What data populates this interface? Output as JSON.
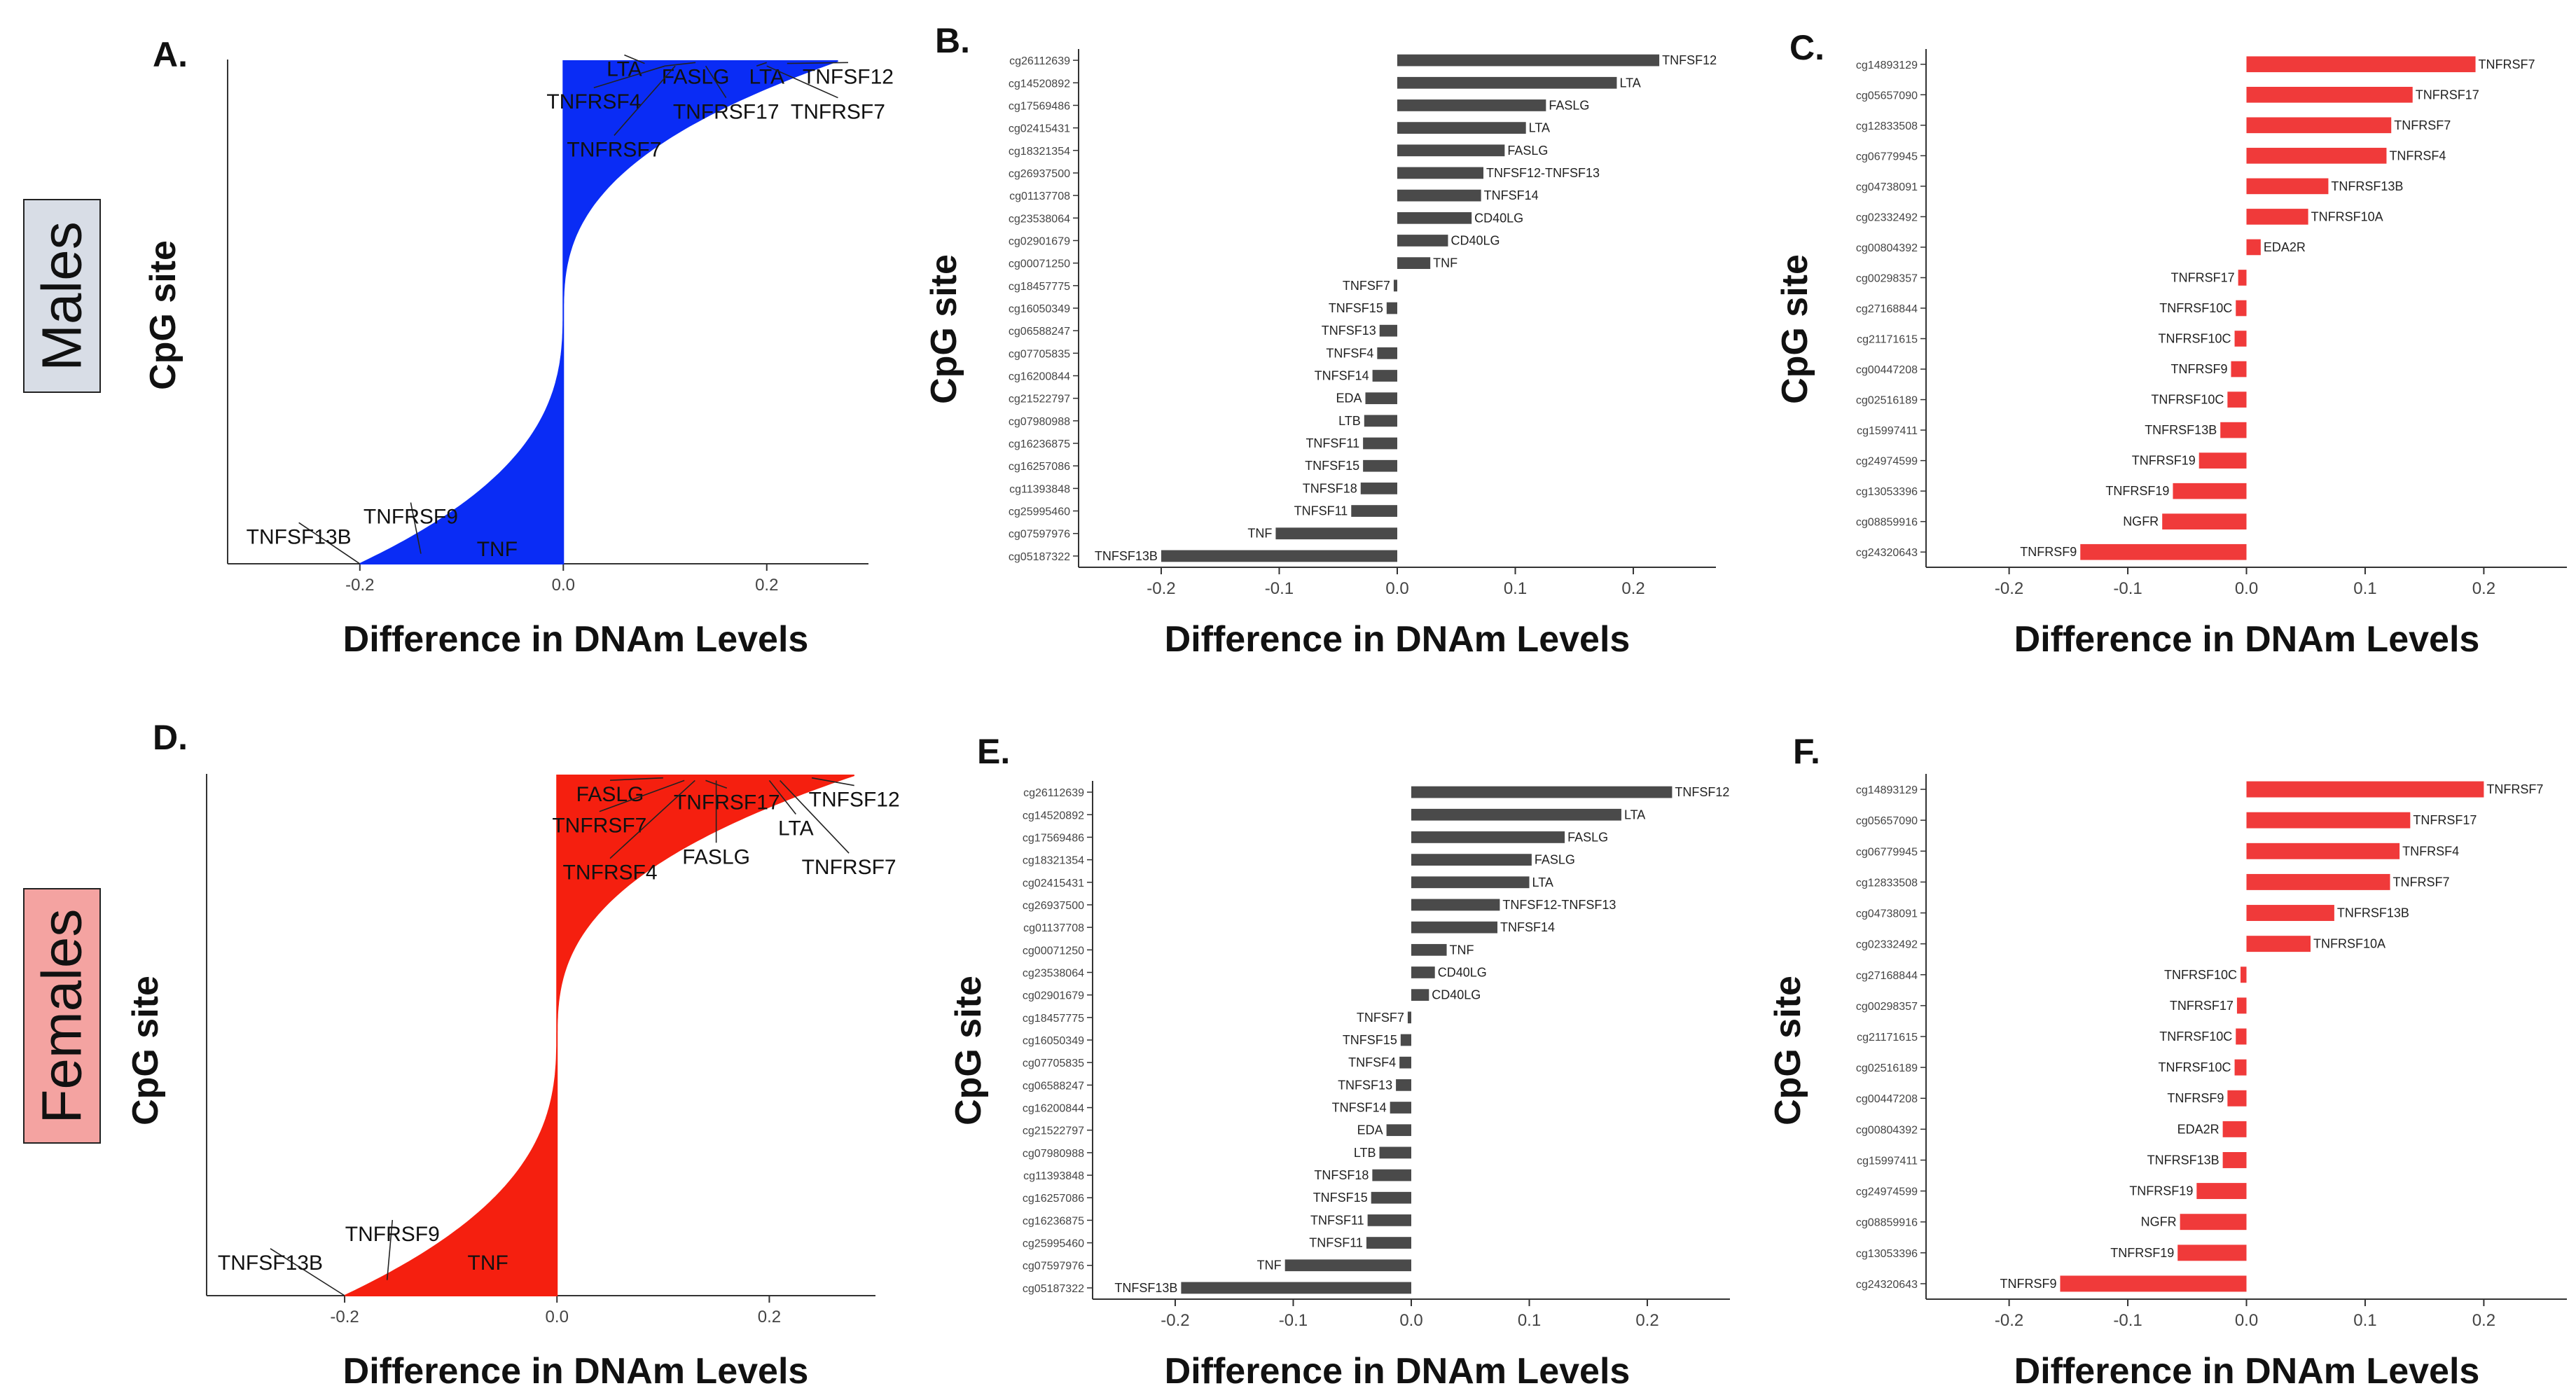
{
  "row_labels": {
    "males": {
      "text": "Males",
      "bg": "#d8dde6"
    },
    "females": {
      "text": "Females",
      "bg": "#f4a3a1"
    }
  },
  "colors": {
    "blue_fill": "#0a2cf5",
    "red_fill": "#f51f0f",
    "gray_bar": "#4a4a4a",
    "red_bar": "#f03a3a",
    "text": "#222222"
  },
  "chart_data": [
    {
      "id": "A",
      "panel_label": "A.",
      "type": "area",
      "fill": "blue",
      "xlabel": "Difference in DNAm Levels",
      "ylabel": "CpG site",
      "xlim": [
        -0.33,
        0.3
      ],
      "xticks": [
        -0.2,
        0.0,
        0.2
      ],
      "xtick_labels": [
        "-0.2",
        "0.0",
        "0.2"
      ],
      "curve": {
        "min_x": -0.2,
        "max_x": 0.27
      },
      "annotations": [
        {
          "text": "LTA",
          "pos": [
            0.06,
            0.97
          ],
          "tip": [
            0.08,
            0.995
          ]
        },
        {
          "text": "FASLG",
          "pos": [
            0.13,
            0.955
          ],
          "tip": [
            0.1,
            0.99
          ]
        },
        {
          "text": "LTA",
          "pos": [
            0.2,
            0.955
          ],
          "tip": [
            0.19,
            0.99
          ]
        },
        {
          "text": "TNFSF12",
          "pos": [
            0.28,
            0.955
          ],
          "tip": [
            0.22,
            0.995
          ]
        },
        {
          "text": "TNFRSF4",
          "pos": [
            0.03,
            0.905
          ],
          "tip": [
            0.1,
            0.99
          ]
        },
        {
          "text": "TNFRSF17",
          "pos": [
            0.16,
            0.885
          ],
          "tip": [
            0.14,
            0.99
          ]
        },
        {
          "text": "TNFRSF7",
          "pos": [
            0.27,
            0.885
          ],
          "tip": [
            0.2,
            0.99
          ]
        },
        {
          "text": "TNFRSF7",
          "pos": [
            0.05,
            0.81
          ],
          "tip": [
            0.11,
            0.99
          ]
        },
        {
          "text": "TNFRSF9",
          "pos": [
            -0.15,
            0.08
          ],
          "tip": [
            -0.14,
            0.02
          ]
        },
        {
          "text": "TNFSF13B",
          "pos": [
            -0.26,
            0.04
          ],
          "tip": [
            -0.2,
            0.0
          ]
        },
        {
          "text": "TNF",
          "pos": [
            -0.065,
            0.015
          ],
          "tip": null
        }
      ]
    },
    {
      "id": "B",
      "panel_label": "B.",
      "type": "bar",
      "orientation": "horizontal",
      "color": "gray",
      "xlabel": "Difference in DNAm Levels",
      "ylabel": "CpG site",
      "xlim": [
        -0.27,
        0.27
      ],
      "xticks": [
        -0.2,
        -0.1,
        0.0,
        0.1,
        0.2
      ],
      "xtick_labels": [
        "-0.2",
        "-0.1",
        "0.0",
        "0.1",
        "0.2"
      ],
      "categories": [
        "cg26112639",
        "cg14520892",
        "cg17569486",
        "cg02415431",
        "cg18321354",
        "cg26937500",
        "cg01137708",
        "cg23538064",
        "cg02901679",
        "cg00071250",
        "cg18457775",
        "cg16050349",
        "cg06588247",
        "cg07705835",
        "cg16200844",
        "cg21522797",
        "cg07980988",
        "cg16236875",
        "cg16257086",
        "cg11393848",
        "cg25995460",
        "cg07597976",
        "cg05187322"
      ],
      "genes": [
        "TNFSF12",
        "LTA",
        "FASLG",
        "LTA",
        "FASLG",
        "TNFSF12-TNFSF13",
        "TNFSF14",
        "CD40LG",
        "CD40LG",
        "TNF",
        "TNFSF7",
        "TNFSF15",
        "TNFSF13",
        "TNFSF4",
        "TNFSF14",
        "EDA",
        "LTB",
        "TNFSF11",
        "TNFSF15",
        "TNFSF18",
        "TNFSF11",
        "TNF",
        "TNFSF13B"
      ],
      "values": [
        0.222,
        0.186,
        0.126,
        0.109,
        0.091,
        0.073,
        0.071,
        0.063,
        0.043,
        0.028,
        -0.003,
        -0.009,
        -0.015,
        -0.017,
        -0.021,
        -0.027,
        -0.028,
        -0.029,
        -0.029,
        -0.031,
        -0.039,
        -0.103,
        -0.2
      ]
    },
    {
      "id": "C",
      "panel_label": "C.",
      "type": "bar",
      "orientation": "horizontal",
      "color": "red",
      "xlabel": "Difference in DNAm Levels",
      "ylabel": "CpG site",
      "xlim": [
        -0.27,
        0.27
      ],
      "xticks": [
        -0.2,
        -0.1,
        0.0,
        0.1,
        0.2
      ],
      "xtick_labels": [
        "-0.2",
        "-0.1",
        "0.0",
        "0.1",
        "0.2"
      ],
      "categories": [
        "cg14893129",
        "cg05657090",
        "cg12833508",
        "cg06779945",
        "cg04738091",
        "cg02332492",
        "cg00804392",
        "cg00298357",
        "cg27168844",
        "cg21171615",
        "cg00447208",
        "cg02516189",
        "cg15997411",
        "cg24974599",
        "cg13053396",
        "cg08859916",
        "cg24320643"
      ],
      "genes": [
        "TNFRSF7",
        "TNFRSF17",
        "TNFRSF7",
        "TNFRSF4",
        "TNFRSF13B",
        "TNFRSF10A",
        "EDA2R",
        "TNFRSF17",
        "TNFRSF10C",
        "TNFRSF10C",
        "TNFRSF9",
        "TNFRSF10C",
        "TNFRSF13B",
        "TNFRSF19",
        "TNFRSF19",
        "NGFR",
        "TNFRSF9"
      ],
      "values": [
        0.193,
        0.14,
        0.122,
        0.118,
        0.069,
        0.052,
        0.012,
        -0.007,
        -0.009,
        -0.01,
        -0.013,
        -0.016,
        -0.022,
        -0.04,
        -0.062,
        -0.071,
        -0.14
      ]
    },
    {
      "id": "D",
      "panel_label": "D.",
      "type": "area",
      "fill": "red",
      "xlabel": "Difference in DNAm Levels",
      "ylabel": "CpG site",
      "xlim": [
        -0.33,
        0.3
      ],
      "xticks": [
        -0.2,
        0.0,
        0.2
      ],
      "xtick_labels": [
        "-0.2",
        "0.0",
        "0.2"
      ],
      "curve": {
        "min_x": -0.2,
        "max_x": 0.28
      },
      "annotations": [
        {
          "text": "FASLG",
          "pos": [
            0.05,
            0.95
          ],
          "tip": [
            0.1,
            0.995
          ]
        },
        {
          "text": "TNFRSF17",
          "pos": [
            0.16,
            0.935
          ],
          "tip": [
            0.14,
            0.99
          ]
        },
        {
          "text": "TNFSF12",
          "pos": [
            0.28,
            0.94
          ],
          "tip": [
            0.24,
            0.995
          ]
        },
        {
          "text": "TNFRSF7",
          "pos": [
            0.04,
            0.89
          ],
          "tip": [
            0.12,
            0.99
          ]
        },
        {
          "text": "LTA",
          "pos": [
            0.225,
            0.885
          ],
          "tip": [
            0.2,
            0.99
          ]
        },
        {
          "text": "FASLG",
          "pos": [
            0.15,
            0.83
          ],
          "tip": [
            0.15,
            0.99
          ]
        },
        {
          "text": "TNFRSF4",
          "pos": [
            0.05,
            0.8
          ],
          "tip": [
            0.13,
            0.99
          ]
        },
        {
          "text": "TNFRSF7",
          "pos": [
            0.275,
            0.81
          ],
          "tip": [
            0.21,
            0.99
          ]
        },
        {
          "text": "TNFRSF9",
          "pos": [
            -0.155,
            0.105
          ],
          "tip": [
            -0.16,
            0.03
          ]
        },
        {
          "text": "TNFSF13B",
          "pos": [
            -0.27,
            0.05
          ],
          "tip": [
            -0.2,
            0.0
          ]
        },
        {
          "text": "TNF",
          "pos": [
            -0.065,
            0.05
          ],
          "tip": null
        }
      ]
    },
    {
      "id": "E",
      "panel_label": "E.",
      "type": "bar",
      "orientation": "horizontal",
      "color": "gray",
      "xlabel": "Difference in DNAm Levels",
      "ylabel": "CpG site",
      "xlim": [
        -0.27,
        0.27
      ],
      "xticks": [
        -0.2,
        -0.1,
        0.0,
        0.1,
        0.2
      ],
      "xtick_labels": [
        "-0.2",
        "-0.1",
        "0.0",
        "0.1",
        "0.2"
      ],
      "categories": [
        "cg26112639",
        "cg14520892",
        "cg17569486",
        "cg18321354",
        "cg02415431",
        "cg26937500",
        "cg01137708",
        "cg00071250",
        "cg23538064",
        "cg02901679",
        "cg18457775",
        "cg16050349",
        "cg07705835",
        "cg06588247",
        "cg16200844",
        "cg21522797",
        "cg07980988",
        "cg11393848",
        "cg16257086",
        "cg16236875",
        "cg25995460",
        "cg07597976",
        "cg05187322"
      ],
      "genes": [
        "TNFSF12",
        "LTA",
        "FASLG",
        "FASLG",
        "LTA",
        "TNFSF12-TNFSF13",
        "TNFSF14",
        "TNF",
        "CD40LG",
        "CD40LG",
        "TNFSF7",
        "TNFSF15",
        "TNFSF4",
        "TNFSF13",
        "TNFSF14",
        "EDA",
        "LTB",
        "TNFSF18",
        "TNFSF15",
        "TNFSF11",
        "TNFSF11",
        "TNF",
        "TNFSF13B"
      ],
      "values": [
        0.221,
        0.178,
        0.13,
        0.102,
        0.1,
        0.075,
        0.073,
        0.03,
        0.02,
        0.015,
        -0.003,
        -0.009,
        -0.01,
        -0.013,
        -0.018,
        -0.021,
        -0.027,
        -0.033,
        -0.034,
        -0.037,
        -0.038,
        -0.107,
        -0.195
      ]
    },
    {
      "id": "F",
      "panel_label": "F.",
      "type": "bar",
      "orientation": "horizontal",
      "color": "red",
      "xlabel": "Difference in DNAm Levels",
      "ylabel": "CpG site",
      "xlim": [
        -0.27,
        0.27
      ],
      "xticks": [
        -0.2,
        -0.1,
        0.0,
        0.1,
        0.2
      ],
      "xtick_labels": [
        "-0.2",
        "-0.1",
        "0.0",
        "0.1",
        "0.2"
      ],
      "categories": [
        "cg14893129",
        "cg05657090",
        "cg06779945",
        "cg12833508",
        "cg04738091",
        "cg02332492",
        "cg27168844",
        "cg00298357",
        "cg21171615",
        "cg02516189",
        "cg00447208",
        "cg00804392",
        "cg15997411",
        "cg24974599",
        "cg08859916",
        "cg13053396",
        "cg24320643"
      ],
      "genes": [
        "TNFRSF7",
        "TNFRSF17",
        "TNFRSF4",
        "TNFRSF7",
        "TNFRSF13B",
        "TNFRSF10A",
        "TNFRSF10C",
        "TNFRSF17",
        "TNFRSF10C",
        "TNFRSF10C",
        "TNFRSF9",
        "EDA2R",
        "TNFRSF13B",
        "TNFRSF19",
        "NGFR",
        "TNFRSF19",
        "TNFRSF9"
      ],
      "values": [
        0.2,
        0.138,
        0.129,
        0.121,
        0.074,
        0.054,
        -0.005,
        -0.008,
        -0.009,
        -0.01,
        -0.016,
        -0.02,
        -0.02,
        -0.042,
        -0.056,
        -0.058,
        -0.157
      ]
    }
  ]
}
